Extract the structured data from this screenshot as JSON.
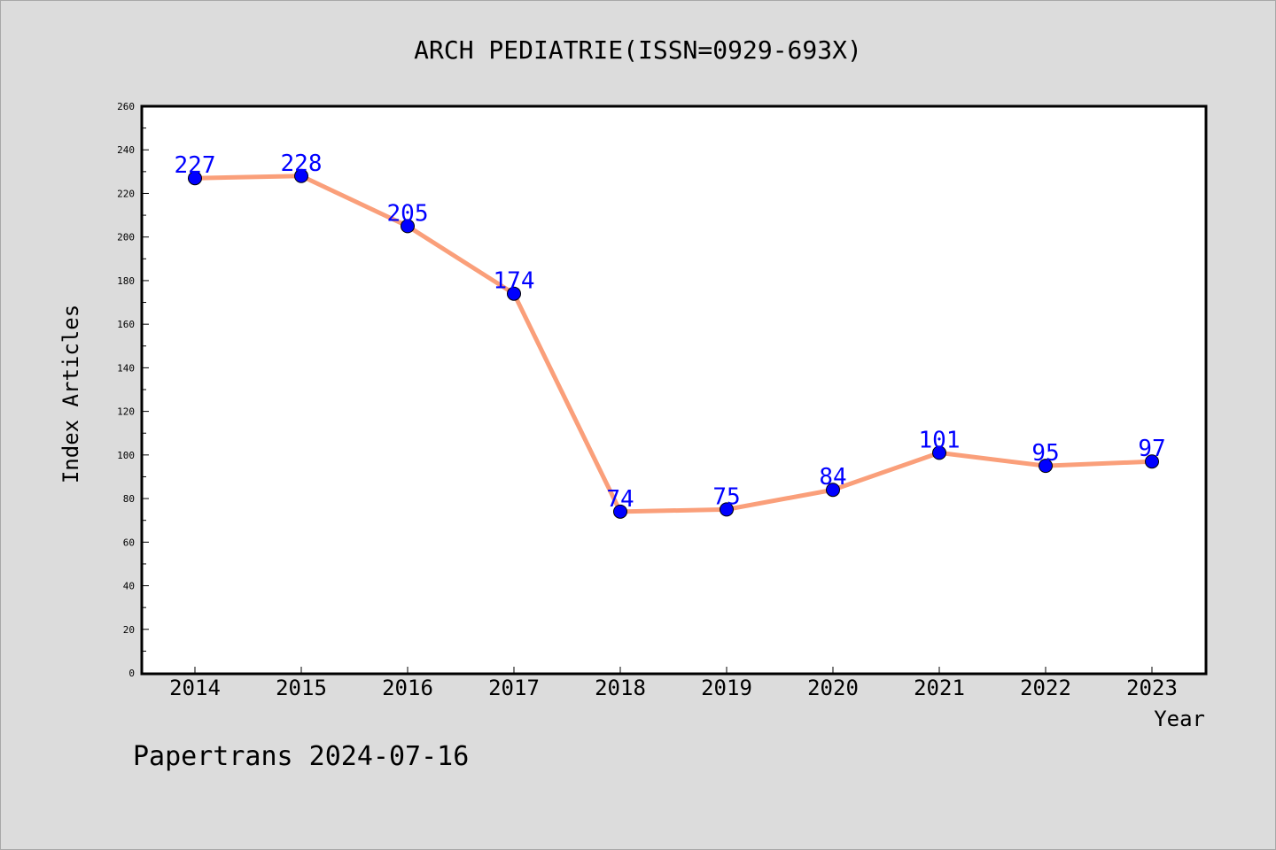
{
  "chart_data": {
    "type": "line",
    "title": "ARCH PEDIATRIE(ISSN=0929-693X)",
    "xlabel": "Year",
    "ylabel": "Index Articles",
    "categories": [
      "2014",
      "2015",
      "2016",
      "2017",
      "2018",
      "2019",
      "2020",
      "2021",
      "2022",
      "2023"
    ],
    "values": [
      227,
      228,
      205,
      174,
      74,
      75,
      84,
      101,
      95,
      97
    ],
    "ylim": [
      0,
      260
    ],
    "yticks": [
      0,
      20,
      40,
      60,
      80,
      100,
      120,
      140,
      160,
      180,
      200,
      220,
      240,
      260
    ],
    "grid": false,
    "colors": {
      "line": "#fa9f7a",
      "marker": "#0000ff",
      "data_label": "#0000ff",
      "background": "#dcdcdc",
      "plot_background": "#ffffff"
    }
  },
  "footer": {
    "text": "Papertrans 2024-07-16"
  }
}
